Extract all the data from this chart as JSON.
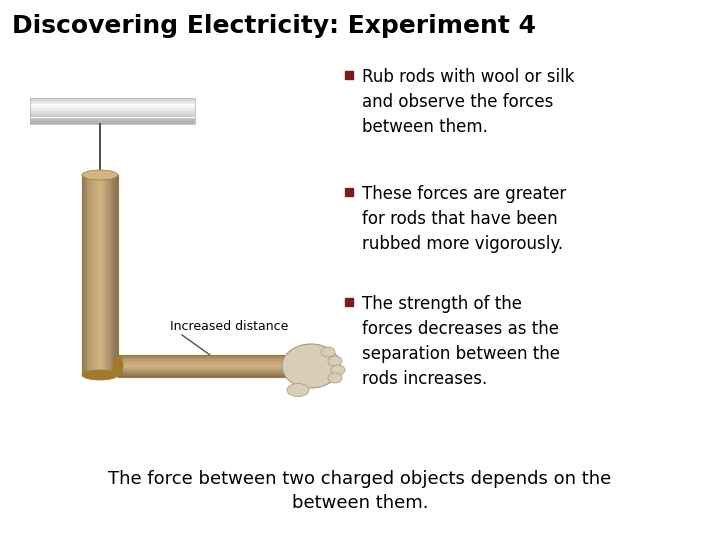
{
  "title": "Discovering Electricity: Experiment 4",
  "title_fontsize": 18,
  "title_color": "#000000",
  "bullet_color": "#7B1C1C",
  "bullet_text_color": "#000000",
  "bullet_fontsize": 12,
  "bullets": [
    "Rub rods with wool or silk\nand observe the forces\nbetween them.",
    "These forces are greater\nfor rods that have been\nrubbed more vigorously.",
    "The strength of the\nforces decreases as the\nseparation between the\nrods increases."
  ],
  "footer_text": "The force between two charged objects depends on the\nbetween them.",
  "footer_fontsize": 13,
  "background_color": "#ffffff",
  "image_label": "Increased distance",
  "image_label_fontsize": 9,
  "rod_color": "#D4B483",
  "rod_edge_color": "#A07830",
  "cap_color_left": "#C8C8C8",
  "cap_color_right": "#E8E8E8",
  "hand_color": "#D8CDB8",
  "hand_edge_color": "#A89878",
  "string_color": "#303030"
}
